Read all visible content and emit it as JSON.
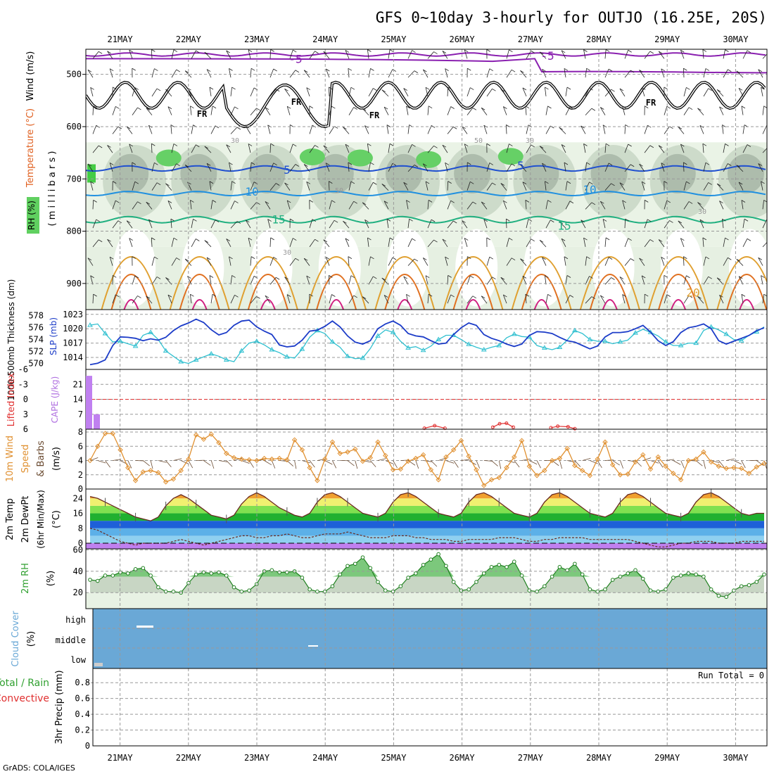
{
  "title": "GFS 0~10day 3-hourly for OUTJO (16.25E, 20S)",
  "footer": "GrADS: COLA/IGES",
  "run_total": "Run Total = 0",
  "colors": {
    "slp": "#1c3cc8",
    "thickness": "#30c0d0",
    "cape": "#c080f0",
    "lifted": "#e03030",
    "wind": "#e09030",
    "rh2m": "#30a030",
    "cloud": "#6aa8d6",
    "precip_rain": "#30a030",
    "precip_conv": "#e03030",
    "temp_purple": "#8a20b0",
    "temp_blue": "#2050d0",
    "temp_cyan": "#2090e0",
    "temp_teal": "#20b080",
    "temp_orange": "#e0a030",
    "rh_green": "#60d060"
  },
  "chart_data": [
    {
      "id": "upper-air",
      "type": "heatmap",
      "ylabel_parts": [
        "Wind (m/s)",
        "Temperature (°C)",
        "RH (%)"
      ],
      "ylabel_inner": "( m i l l i b a r s )",
      "yticks": [
        500,
        600,
        700,
        800,
        900
      ],
      "x_labels": [
        "21MAY",
        "22MAY",
        "23MAY",
        "24MAY",
        "25MAY",
        "26MAY",
        "27MAY",
        "28MAY",
        "29MAY",
        "30MAY"
      ],
      "isotherm_labels": [
        "-5",
        "-5",
        "5",
        "5",
        "10",
        "10",
        "15",
        "15",
        "20"
      ],
      "freezing_labels": [
        "FR",
        "FR",
        "FR",
        "FR"
      ],
      "rh_labels": [
        "30",
        "30",
        "50",
        "50",
        "30",
        "30"
      ]
    },
    {
      "id": "slp-thickness",
      "type": "line",
      "ylabel_left": "1000-500mb Thickness (dm)",
      "ylabel_right": "SLP (mb)",
      "thickness_ticks": [
        570,
        572,
        574,
        576,
        578
      ],
      "slp_ticks": [
        1014,
        1017,
        1020,
        1023
      ],
      "series": [
        {
          "name": "SLP (mb)",
          "values": [
            1012.5,
            1012.8,
            1013.5,
            1016.5,
            1018.3,
            1018.2,
            1018.0,
            1017.5,
            1017.9,
            1017.6,
            1018.2,
            1019.6,
            1020.6,
            1021.2,
            1022.0,
            1021.3,
            1019.8,
            1018.7,
            1019.2,
            1020.7,
            1021.6,
            1021.8,
            1020.4,
            1019.5,
            1018.8,
            1016.6,
            1016.2,
            1016.4,
            1017.6,
            1019.5,
            1019.7,
            1020.5,
            1021.6,
            1020.4,
            1018.5,
            1017.2,
            1016.8,
            1017.5,
            1020.0,
            1021.0,
            1021.6,
            1020.7,
            1019.0,
            1018.5,
            1018.3,
            1017.5,
            1016.8,
            1017.0,
            1018.8,
            1020.2,
            1021.2,
            1020.7,
            1018.8,
            1018.0,
            1017.5,
            1016.8,
            1016.3,
            1016.8,
            1018.6,
            1019.4,
            1019.3,
            1019.0,
            1018.2,
            1017.5,
            1017.2,
            1016.5,
            1015.8,
            1016.4,
            1018.3,
            1019.2,
            1019.2,
            1019.4,
            1020.0,
            1020.7,
            1019.3,
            1017.5,
            1016.5,
            1017.3,
            1019.2,
            1020.2,
            1020.5,
            1021.0,
            1020.0,
            1017.5,
            1016.8,
            1017.4,
            1018.0,
            1018.6,
            1019.6,
            1020.2
          ]
        },
        {
          "name": "Thickness (dm)",
          "values": [
            576.4,
            576.6,
            575.0,
            573.6,
            573.7,
            573.3,
            572.9,
            574.7,
            575.2,
            574.0,
            572.1,
            571.2,
            570.3,
            570.0,
            570.6,
            571.1,
            571.6,
            571.2,
            570.6,
            570.3,
            572.1,
            573.4,
            573.7,
            573.1,
            572.3,
            571.8,
            571.1,
            570.9,
            572.4,
            574.4,
            575.5,
            575.0,
            573.6,
            572.7,
            571.2,
            570.8,
            570.9,
            572.5,
            574.6,
            575.6,
            575.2,
            573.7,
            572.6,
            572.8,
            572.2,
            572.9,
            574.0,
            574.7,
            574.7,
            574.0,
            573.2,
            572.7,
            572.3,
            572.7,
            573.0,
            574.3,
            574.9,
            574.5,
            574.4,
            573.0,
            572.6,
            572.3,
            572.7,
            573.9,
            575.5,
            575.0,
            574.0,
            573.7,
            573.7,
            573.3,
            573.6,
            573.9,
            575.1,
            575.7,
            575.2,
            574.6,
            573.6,
            573.0,
            573.0,
            573.4,
            573.4,
            575.5,
            576.1,
            575.6,
            574.9,
            574.0,
            573.8,
            574.7,
            575.3,
            576.1
          ]
        }
      ]
    },
    {
      "id": "cape-lifted",
      "type": "bar",
      "ylabel_left": "Lifted Index",
      "ylabel_right": "CAPE (J/kg)",
      "li_ticks": [
        "6",
        "3",
        "0",
        "-3",
        "-6"
      ],
      "cape_ticks": [
        7,
        14,
        21
      ],
      "cape_values": [
        25,
        7
      ],
      "lifted_index_curves": [
        {
          "x_day": [
            4.45,
            4.6,
            4.75
          ],
          "values": [
            5.8,
            5.3,
            5.8
          ]
        },
        {
          "x_day": [
            5.45,
            5.55,
            5.65,
            5.75
          ],
          "values": [
            5.6,
            4.9,
            4.8,
            5.6
          ]
        },
        {
          "x_day": [
            6.3,
            6.4,
            6.55,
            6.65
          ],
          "values": [
            5.7,
            5.4,
            5.5,
            5.9
          ]
        }
      ]
    },
    {
      "id": "wind-10m",
      "type": "line",
      "ylabel": "10m Wind Speed & Barbs (m/s)",
      "yticks": [
        0,
        2,
        4,
        6,
        8
      ],
      "series": [
        {
          "name": "10m Wind Speed",
          "values": [
            4.0,
            6.0,
            7.8,
            7.8,
            5.5,
            3.0,
            1.2,
            2.4,
            2.6,
            2.3,
            1.0,
            1.4,
            2.6,
            4.2,
            7.6,
            7.0,
            7.7,
            6.5,
            5.0,
            4.4,
            4.2,
            4.1,
            4.0,
            4.3,
            4.2,
            4.3,
            4.1,
            6.9,
            5.5,
            3.0,
            1.2,
            4.2,
            6.6,
            5.0,
            5.2,
            5.6,
            3.9,
            4.4,
            6.6,
            4.7,
            2.7,
            2.8,
            3.9,
            4.3,
            4.8,
            2.7,
            1.3,
            4.5,
            5.5,
            6.8,
            4.6,
            2.7,
            0.5,
            1.3,
            1.6,
            3.0,
            4.5,
            6.8,
            3.2,
            1.9,
            2.6,
            4.0,
            4.3,
            5.7,
            3.3,
            2.6,
            1.9,
            4.2,
            6.6,
            3.4,
            2.0,
            2.1,
            3.8,
            4.8,
            2.8,
            4.5,
            3.2,
            2.2,
            1.3,
            4.0,
            4.2,
            5.2,
            3.8,
            3.2,
            2.9,
            3.0,
            2.9,
            2.2,
            3.1,
            3.6
          ]
        }
      ]
    },
    {
      "id": "temp-2m",
      "type": "area",
      "ylabel": "2m Temp 2m DewPt (6hr Min/Max) (°C)",
      "yticks": [
        0,
        8,
        16,
        24
      ],
      "series": [
        {
          "name": "2m Temp",
          "values": [
            25,
            24,
            22,
            20,
            18,
            16,
            14,
            13,
            12,
            14,
            20,
            24,
            26,
            24,
            21,
            18,
            15,
            14,
            13,
            15,
            21,
            25,
            27,
            25,
            22,
            19,
            17,
            15,
            14,
            16,
            22,
            26,
            27,
            25,
            22,
            19,
            16,
            15,
            14,
            16,
            22,
            26,
            27,
            25,
            22,
            19,
            16,
            15,
            14,
            16,
            22,
            26,
            27,
            25,
            22,
            19,
            16,
            15,
            14,
            16,
            22,
            26,
            27,
            25,
            22,
            19,
            16,
            15,
            14,
            16,
            22,
            26,
            27,
            25,
            22,
            19,
            16,
            15,
            14,
            16,
            22,
            26,
            27,
            25,
            22,
            19,
            16,
            15,
            16,
            16
          ]
        },
        {
          "name": "2m DewPt",
          "values": [
            8,
            7,
            5,
            3,
            1,
            0,
            -1,
            0,
            0,
            0,
            0,
            1,
            2,
            1,
            0,
            -1,
            0,
            1,
            2,
            3,
            4,
            4,
            3,
            3,
            4,
            4,
            5,
            4,
            3,
            3,
            4,
            5,
            5,
            5,
            6,
            5,
            4,
            3,
            3,
            3,
            4,
            4,
            4,
            3,
            3,
            2,
            2,
            2,
            1,
            1,
            2,
            2,
            2,
            2,
            3,
            3,
            3,
            2,
            1,
            1,
            2,
            2,
            3,
            3,
            3,
            3,
            2,
            2,
            2,
            2,
            2,
            2,
            1,
            0,
            -1,
            -2,
            -2,
            -1,
            0,
            0,
            1,
            1,
            1,
            0,
            0,
            0,
            1,
            1,
            1,
            1
          ]
        }
      ]
    },
    {
      "id": "rh-2m",
      "type": "area",
      "ylabel": "2m RH (%)",
      "yticks": [
        20,
        40,
        60
      ],
      "series": [
        {
          "name": "2m RH",
          "values": [
            32,
            31,
            36,
            36,
            39,
            38,
            42,
            43,
            36,
            25,
            21,
            21,
            20,
            29,
            37,
            39,
            38,
            39,
            36,
            25,
            21,
            22,
            28,
            40,
            41,
            39,
            39,
            40,
            34,
            23,
            21,
            21,
            26,
            37,
            45,
            47,
            53,
            43,
            30,
            22,
            21,
            26,
            34,
            38,
            46,
            51,
            56,
            45,
            30,
            22,
            23,
            30,
            38,
            44,
            46,
            44,
            49,
            36,
            22,
            21,
            26,
            35,
            44,
            41,
            47,
            37,
            23,
            21,
            23,
            32,
            35,
            38,
            41,
            33,
            22,
            21,
            23,
            34,
            36,
            38,
            37,
            35,
            23,
            17,
            16,
            22,
            26,
            27,
            30,
            37
          ]
        }
      ]
    },
    {
      "id": "cloud-cover",
      "type": "heatmap",
      "ylabel": "Cloud Cover (%)",
      "levels": [
        "high",
        "middle",
        "low"
      ]
    },
    {
      "id": "precip-3hr",
      "type": "bar",
      "ylabel": "3hr Precip (mm)",
      "legend_left": "Total / Rain",
      "legend_left_2": "Convective",
      "yticks": [
        "0",
        "0.2",
        "0.4",
        "0.6",
        "0.8"
      ],
      "values": []
    }
  ]
}
